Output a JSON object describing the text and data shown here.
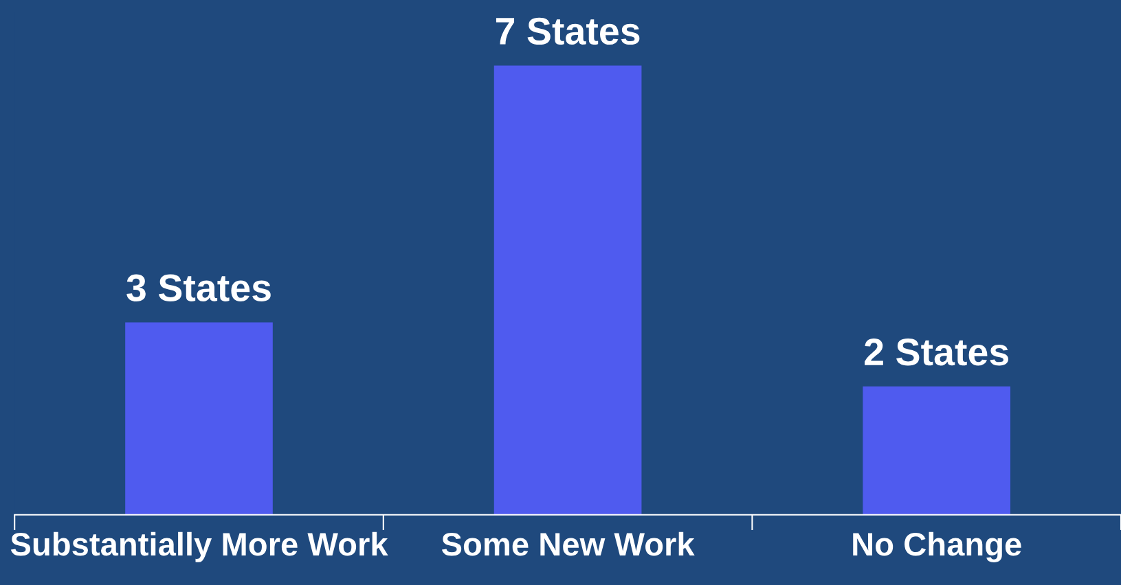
{
  "chart_data": {
    "type": "bar",
    "categories": [
      "Substantially More Work",
      "Some New Work",
      "No Change"
    ],
    "values": [
      3,
      7,
      2
    ],
    "value_labels": [
      "3 States",
      "7 States",
      "2 States"
    ],
    "color": "#4f5bef",
    "grid": false,
    "legend": false
  }
}
